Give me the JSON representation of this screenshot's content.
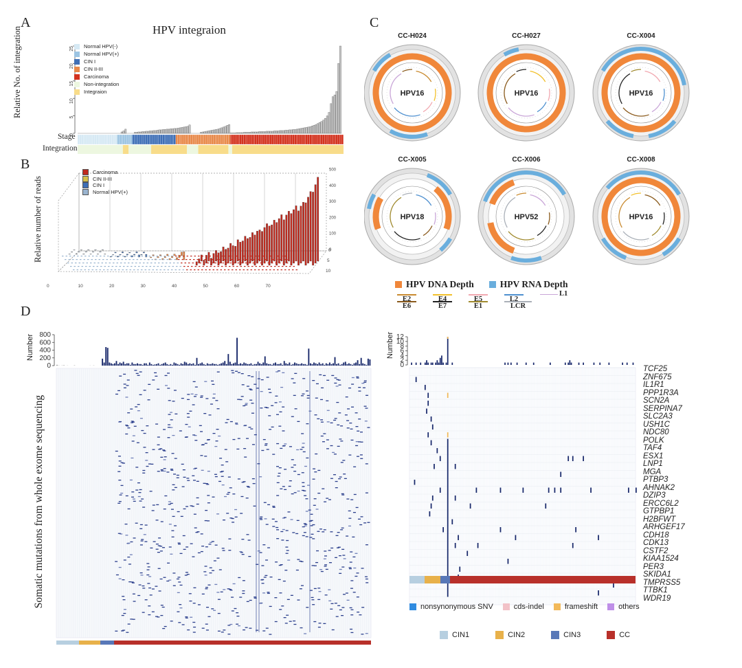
{
  "panel_labels": {
    "a": "A",
    "b": "B",
    "c": "C",
    "d": "D"
  },
  "colors": {
    "normal_neg": "#d6e9f4",
    "normal_pos": "#9cc4e2",
    "cin1": "#3f6fb6",
    "cin23": "#e8894a",
    "carcinoma": "#d3321f",
    "non_integration": "#edf7e0",
    "integration": "#f8dc8a",
    "bar_gray": "#c8c8c8",
    "navy": "#1a2a6c",
    "hpv_dna": "#f0873a",
    "hpv_rna": "#6aaedd"
  },
  "chart_data": [
    {
      "type": "bar",
      "panel": "A",
      "title": "HPV integraion",
      "ylabel": "Relative  No. of integration",
      "ylim": [
        0,
        25
      ],
      "yticks": [
        "0",
        "5",
        "10",
        "15",
        "20",
        "25"
      ],
      "values": [
        0,
        0,
        0,
        0,
        0,
        0,
        0,
        0,
        0,
        0,
        0,
        0,
        0,
        0,
        0,
        0,
        0,
        0,
        0,
        0,
        0,
        0,
        0,
        0.4,
        0.7,
        1.2,
        0,
        0,
        0,
        0,
        0.3,
        0.3,
        0.4,
        0.4,
        0.5,
        0.5,
        0.6,
        0.6,
        0.7,
        0.7,
        0.8,
        0.8,
        0.9,
        1.0,
        1.0,
        1.1,
        1.1,
        1.2,
        1.2,
        1.3,
        1.3,
        1.4,
        1.4,
        1.5,
        1.6,
        1.7,
        1.8,
        1.9,
        2.0,
        2.4,
        0,
        0,
        0,
        0,
        0,
        0.3,
        0.4,
        0.5,
        0.6,
        0.7,
        0.8,
        0.9,
        1.0,
        1.1,
        1.2,
        1.4,
        1.6,
        1.8,
        2.0,
        2.3,
        2.5,
        0.1,
        0.1,
        0.1,
        0.2,
        0.2,
        0.2,
        0.2,
        0.3,
        0.3,
        0.3,
        0.3,
        0.4,
        0.4,
        0.4,
        0.4,
        0.5,
        0.5,
        0.5,
        0.5,
        0.6,
        0.6,
        0.6,
        0.6,
        0.7,
        0.7,
        0.7,
        0.8,
        0.8,
        0.8,
        0.9,
        0.9,
        1.0,
        1.0,
        1.1,
        1.1,
        1.2,
        1.3,
        1.4,
        1.5,
        1.6,
        1.7,
        1.8,
        1.9,
        2.1,
        2.3,
        2.5,
        2.8,
        3.1,
        3.4,
        3.8,
        4.3,
        5.0,
        6.0,
        8.5,
        10.5,
        11,
        12,
        20,
        25
      ],
      "stage_rows": [
        "Stage",
        "Integration"
      ],
      "legend": [
        "Normal HPV(-)",
        "Normal HPV(+)",
        "CIN I",
        "CIN II-III",
        "Carcinoma",
        "Non-integration",
        "Integraion"
      ],
      "stage_segments": [
        {
          "name": "Normal HPV(-)",
          "count": 21
        },
        {
          "name": "Normal HPV(+)",
          "count": 8
        },
        {
          "name": "CIN I",
          "count": 23
        },
        {
          "name": "CIN II-III",
          "count": 29
        },
        {
          "name": "Carcinoma",
          "count": 67
        }
      ],
      "integration_segments": [
        {
          "name": "Non-integration",
          "count": 24
        },
        {
          "name": "Integraion",
          "count": 3
        },
        {
          "name": "Non-integration",
          "count": 12
        },
        {
          "name": "Integraion",
          "count": 19
        },
        {
          "name": "Non-integration",
          "count": 6
        },
        {
          "name": "Integraion",
          "count": 16
        },
        {
          "name": "Non-integration",
          "count": 2
        },
        {
          "name": "Integraion",
          "count": 66
        }
      ]
    },
    {
      "type": "bar",
      "panel": "B",
      "ylabel": "Relative number of reads",
      "zlim": [
        0,
        500
      ],
      "zticks": [
        "0",
        "100",
        "200",
        "300",
        "400",
        "500"
      ],
      "xticks": [
        "0",
        "10",
        "20",
        "30",
        "40",
        "50",
        "60",
        "70"
      ],
      "depth_ticks": [
        "0",
        "5",
        "10"
      ],
      "legend": [
        "Carcinoma",
        "CIN II-III",
        "CIN I",
        "Normal HPV(+)"
      ],
      "series": [
        {
          "name": "Normal HPV(+)",
          "values": [
            2,
            3,
            2,
            3,
            4,
            2,
            3,
            5,
            3,
            2,
            4,
            3,
            2,
            5,
            3,
            2
          ]
        },
        {
          "name": "CIN I",
          "values": [
            3,
            2,
            4,
            5,
            3,
            6,
            4,
            5,
            3,
            8,
            4,
            6,
            12,
            3,
            5,
            15
          ]
        },
        {
          "name": "CIN II-III",
          "values": [
            3,
            4,
            5,
            4,
            6,
            5,
            7,
            6,
            8,
            7,
            10,
            9,
            12,
            15,
            20,
            45
          ]
        },
        {
          "name": "Carcinoma",
          "values": [
            20,
            25,
            35,
            30,
            45,
            50,
            40,
            55,
            60,
            70,
            65,
            80,
            90,
            85,
            100,
            110,
            95,
            120,
            130,
            125,
            140,
            150,
            145,
            160,
            170,
            180,
            175,
            190,
            200,
            210,
            220,
            215,
            230,
            240,
            250,
            260,
            255,
            270,
            280,
            290,
            300,
            310,
            305,
            320,
            330,
            350,
            370,
            390,
            410,
            440,
            470
          ]
        }
      ]
    },
    {
      "type": "bar",
      "panel": "D-left",
      "ylabel": "Number",
      "ylim": [
        0,
        800
      ],
      "yticks": [
        "0",
        "200",
        "400",
        "600",
        "800"
      ],
      "side_label": "Somatic mutations from whole exome sequencing",
      "values": [
        20,
        5,
        0,
        5,
        10,
        0,
        3,
        0,
        0,
        0,
        8,
        0,
        0,
        0,
        0,
        0,
        0,
        0,
        0,
        3,
        0,
        5,
        0,
        0,
        0,
        0,
        180,
        80,
        480,
        460,
        80,
        60,
        40,
        60,
        120,
        40,
        80,
        60,
        100,
        40,
        60,
        60,
        20,
        80,
        40,
        40,
        60,
        40,
        40,
        20,
        60,
        60,
        20,
        80,
        40,
        20,
        30,
        40,
        60,
        20,
        40,
        60,
        80,
        40,
        20,
        40,
        20,
        80,
        60,
        40,
        20,
        60,
        40,
        100,
        80,
        40,
        60,
        40,
        60,
        20,
        200,
        40,
        60,
        80,
        40,
        20,
        60,
        40,
        40,
        60,
        40,
        40,
        20,
        40,
        60,
        80,
        120,
        40,
        300,
        100,
        40,
        60,
        80,
        720,
        40,
        60,
        40,
        80,
        60,
        40,
        40,
        60,
        20,
        40,
        40,
        100,
        60,
        40,
        80,
        240,
        60,
        40,
        40,
        20,
        60,
        80,
        40,
        40,
        60,
        20,
        120,
        60,
        40,
        80,
        20,
        40,
        80,
        60,
        40,
        40,
        60,
        40,
        40,
        20,
        440,
        60,
        40,
        80,
        60,
        40,
        80,
        40,
        60,
        20,
        60,
        40,
        80,
        40,
        60,
        220,
        40,
        60,
        20,
        40,
        80,
        100,
        40,
        60,
        40,
        20,
        60,
        80,
        140,
        40,
        200,
        60,
        40,
        20,
        180,
        160
      ]
    },
    {
      "type": "bar",
      "panel": "D-right",
      "ylabel": "Number",
      "ylim": [
        0,
        12
      ],
      "yticks": [
        "0",
        "2",
        "4",
        "6",
        "8",
        "10",
        "12"
      ],
      "values": [
        0,
        1,
        0,
        0,
        1,
        0,
        0,
        1,
        0,
        0,
        1,
        2,
        1,
        0,
        1,
        1,
        0,
        1,
        2,
        1,
        3,
        4,
        1,
        0,
        1,
        12,
        0,
        0,
        1,
        0,
        0,
        0,
        0,
        0,
        0,
        0,
        0,
        0,
        0,
        0,
        0,
        0,
        0,
        0,
        0,
        0,
        0,
        0,
        0,
        0,
        0,
        0,
        0,
        0,
        0,
        0,
        0,
        0,
        0,
        0,
        0,
        0,
        0,
        1,
        0,
        1,
        0,
        1,
        0,
        0,
        0,
        1,
        0,
        0,
        0,
        0,
        0,
        1,
        0,
        0,
        0,
        0,
        1,
        0,
        0,
        0,
        0,
        0,
        0,
        0,
        0,
        0,
        0,
        1,
        0,
        0,
        0,
        0,
        0,
        0,
        0,
        0,
        0,
        1,
        0,
        1,
        2,
        1,
        0,
        0,
        0,
        0,
        1,
        0,
        0,
        1,
        0,
        0,
        0,
        0,
        0,
        0,
        1,
        0,
        0,
        0,
        1,
        0,
        0,
        0,
        0,
        0,
        1,
        0,
        0,
        0,
        0,
        0,
        0,
        0,
        0,
        1,
        0,
        0,
        1,
        0,
        0,
        0,
        1,
        0
      ]
    }
  ],
  "panel_c": {
    "circles": [
      {
        "sample": "CC-H024",
        "type": "HPV16"
      },
      {
        "sample": "CC-H027",
        "type": "HPV16"
      },
      {
        "sample": "CC-X004",
        "type": "HPV16"
      },
      {
        "sample": "CC-X005",
        "type": "HPV18"
      },
      {
        "sample": "CC-X006",
        "type": "HPV52"
      },
      {
        "sample": "CC-X008",
        "type": "HPV16"
      }
    ],
    "depth_legend": [
      "HPV DNA Depth",
      "HPV RNA Depth"
    ],
    "genes": [
      {
        "name": "E2",
        "color": "#c98a2e"
      },
      {
        "name": "E4",
        "color": "#f2c02a"
      },
      {
        "name": "E5",
        "color": "#f1a8b0"
      },
      {
        "name": "L2",
        "color": "#4d8fcf"
      },
      {
        "name": "L1",
        "color": "#c9a6d8"
      },
      {
        "name": "E6",
        "color": "#8a5a1c"
      },
      {
        "name": "E7",
        "color": "#222222"
      },
      {
        "name": "E1",
        "color": "#a08a2e"
      },
      {
        "name": "LCR",
        "color": "#aab0b8"
      }
    ]
  },
  "panel_d": {
    "genes": [
      "TCF25",
      "ZNF675",
      "IL1R1",
      "PPP1R3A",
      "SCN2A",
      "SERPINA7",
      "SLC2A3",
      "USH1C",
      "NDC80",
      "POLK",
      "TAF4",
      "ESX1",
      "LNP1",
      "MGA",
      "PTBP3",
      "AHNAK2",
      "DZIP3",
      "ERCC6L2",
      "GTPBP1",
      "H2BFWT",
      "ARHGEF17",
      "CDH18",
      "CDK13",
      "CSTF2",
      "KIAA1524",
      "PER3",
      "SKIDA1",
      "TMPRSS5",
      "TTBK1",
      "WDR19"
    ],
    "mutation_legend": [
      {
        "label": "nonsynonymous SNV",
        "color": "#2f8be0"
      },
      {
        "label": "cds-indel",
        "color": "#f2c2c8"
      },
      {
        "label": "frameshift",
        "color": "#f2b95a"
      },
      {
        "label": "others",
        "color": "#bf8fe8"
      }
    ],
    "stage_legend": [
      {
        "label": "CIN1",
        "color": "#b7cfe0"
      },
      {
        "label": "CIN2",
        "color": "#e8b14a"
      },
      {
        "label": "CIN3",
        "color": "#5878b8"
      },
      {
        "label": "CC",
        "color": "#b8302a"
      }
    ]
  }
}
